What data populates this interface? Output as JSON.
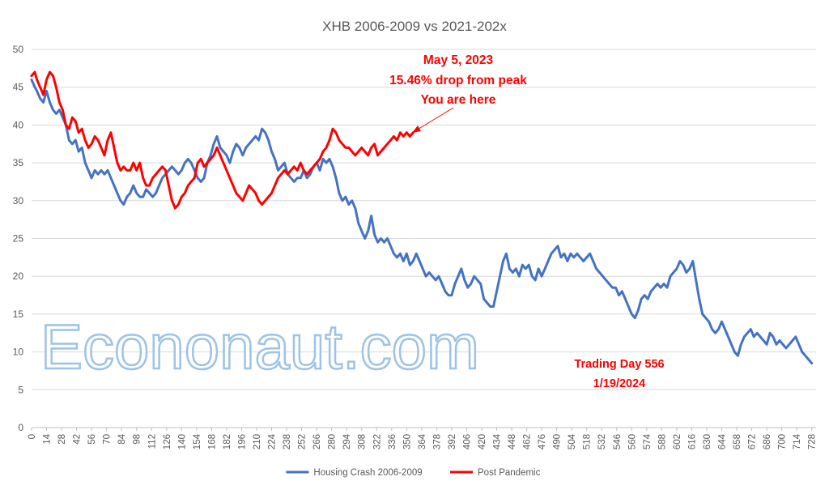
{
  "chart_data": {
    "type": "line",
    "title": "XHB 2006-2009 vs 2021-202x",
    "xlabel": "",
    "ylabel": "",
    "xlim": [
      0,
      732
    ],
    "ylim": [
      0,
      50
    ],
    "y_ticks": [
      0,
      5,
      10,
      15,
      20,
      25,
      30,
      35,
      40,
      45,
      50
    ],
    "x_tick_step": 14,
    "x_tick_max": 728,
    "grid": true,
    "legend_position": "bottom",
    "series": [
      {
        "name": "Housing Crash 2006-2009",
        "color": "#4472c4",
        "x": [
          0,
          3,
          5,
          8,
          11,
          14,
          17,
          20,
          23,
          26,
          29,
          32,
          35,
          38,
          41,
          44,
          47,
          50,
          53,
          56,
          59,
          62,
          65,
          68,
          71,
          74,
          77,
          80,
          83,
          86,
          89,
          92,
          95,
          98,
          101,
          104,
          107,
          110,
          113,
          116,
          119,
          122,
          125,
          128,
          131,
          134,
          137,
          140,
          143,
          146,
          149,
          152,
          155,
          158,
          161,
          164,
          167,
          170,
          173,
          176,
          179,
          182,
          185,
          188,
          191,
          194,
          197,
          200,
          203,
          206,
          209,
          212,
          215,
          218,
          221,
          224,
          227,
          230,
          233,
          236,
          239,
          242,
          245,
          248,
          251,
          254,
          257,
          260,
          263,
          266,
          269,
          272,
          275,
          278,
          281,
          284,
          287,
          290,
          293,
          296,
          299,
          302,
          305,
          308,
          311,
          314,
          317,
          320,
          323,
          326,
          329,
          332,
          335,
          338,
          341,
          344,
          347,
          350,
          353,
          356,
          359,
          362,
          365,
          368,
          371,
          374,
          377,
          380,
          383,
          386,
          389,
          392,
          395,
          398,
          401,
          404,
          407,
          410,
          413,
          416,
          419,
          422,
          425,
          428,
          431,
          434,
          437,
          440,
          443,
          446,
          449,
          452,
          455,
          458,
          461,
          464,
          467,
          470,
          473,
          476,
          479,
          482,
          485,
          488,
          491,
          494,
          497,
          500,
          503,
          506,
          509,
          512,
          515,
          518,
          521,
          524,
          527,
          530,
          533,
          536,
          539,
          542,
          545,
          548,
          551,
          554,
          557,
          560,
          563,
          566,
          569,
          572,
          575,
          578,
          581,
          584,
          587,
          590,
          593,
          596,
          599,
          602,
          605,
          608,
          611,
          614,
          617,
          620,
          623,
          626,
          629,
          632,
          635,
          638,
          641,
          644,
          647,
          650,
          653,
          656,
          659,
          662,
          665,
          668,
          671,
          674,
          677,
          680,
          683,
          686,
          689,
          692,
          695,
          698,
          701,
          704,
          707,
          710,
          713,
          716,
          719,
          722,
          725,
          728
        ],
        "values": [
          46,
          45,
          44.5,
          43.5,
          43,
          44.5,
          43,
          42,
          41.5,
          42,
          41,
          40,
          38,
          37.5,
          38,
          36.5,
          37,
          35,
          34,
          33,
          34,
          33.5,
          34,
          33.5,
          34,
          33,
          32,
          31,
          30,
          29.5,
          30.5,
          31,
          32,
          31,
          30.5,
          30.5,
          31.5,
          31,
          30.5,
          31,
          32,
          33,
          33.5,
          34,
          34.5,
          34,
          33.5,
          34,
          35,
          35.5,
          35,
          34,
          33,
          32.5,
          33,
          35,
          36,
          37.5,
          38.5,
          37,
          36.5,
          36,
          35,
          36.5,
          37.5,
          37,
          36,
          37,
          37.5,
          38,
          38.5,
          38,
          39.5,
          39,
          38,
          36.5,
          35.5,
          34,
          34.5,
          35,
          33.5,
          33,
          32.5,
          33,
          33,
          34,
          33,
          33.5,
          34.5,
          35,
          34,
          35.5,
          35,
          35.5,
          34.5,
          33,
          31,
          30,
          30.5,
          29.5,
          30,
          29,
          27,
          26,
          25,
          26,
          28,
          25.5,
          24.5,
          25,
          24.5,
          25,
          24,
          23,
          22.5,
          23,
          22,
          23,
          21.5,
          22,
          23,
          22,
          21,
          20,
          20.5,
          20,
          19.5,
          20,
          19,
          18,
          17.5,
          17.5,
          19,
          20,
          21,
          19.5,
          18.5,
          19,
          20,
          19.5,
          19,
          17,
          16.5,
          16,
          16,
          18,
          20,
          22,
          23,
          21,
          20.5,
          21,
          20,
          21.5,
          21,
          21.5,
          20,
          19.5,
          21,
          20,
          21,
          22,
          23,
          23.5,
          24,
          22.5,
          23,
          22,
          23,
          22.5,
          23,
          22.5,
          22,
          22.5,
          23,
          22,
          21,
          20.5,
          20,
          19.5,
          19,
          18.5,
          18.5,
          17.5,
          18,
          17,
          16,
          15,
          14.5,
          15.5,
          17,
          17.5,
          17,
          18,
          18.5,
          19,
          18.5,
          19,
          18.5,
          20,
          20.5,
          21,
          22,
          21.5,
          20.5,
          21,
          22,
          19.5,
          17,
          15,
          14.5,
          14,
          13,
          12.5,
          13,
          14,
          13,
          12,
          11,
          10,
          9.5,
          11,
          12,
          12.5,
          13,
          12,
          12.5,
          12,
          11.5,
          11,
          12.5,
          12,
          11,
          11.5,
          11,
          10.5,
          11,
          11.5,
          12,
          11,
          10,
          9.5,
          9,
          8.5
        ]
      },
      {
        "name": "Post Pandemic",
        "color": "#ff0000",
        "x": [
          0,
          3,
          5,
          8,
          11,
          14,
          17,
          20,
          23,
          26,
          29,
          32,
          35,
          38,
          41,
          44,
          47,
          50,
          53,
          56,
          59,
          62,
          65,
          68,
          71,
          74,
          77,
          80,
          83,
          86,
          89,
          92,
          95,
          98,
          101,
          104,
          107,
          110,
          113,
          116,
          119,
          122,
          125,
          128,
          131,
          134,
          137,
          140,
          143,
          146,
          149,
          152,
          155,
          158,
          161,
          164,
          167,
          170,
          173,
          176,
          179,
          182,
          185,
          188,
          191,
          194,
          197,
          200,
          203,
          206,
          209,
          212,
          215,
          218,
          221,
          224,
          227,
          230,
          233,
          236,
          239,
          242,
          245,
          248,
          251,
          254,
          257,
          260,
          263,
          266,
          269,
          272,
          275,
          278,
          281,
          284,
          287,
          290,
          293,
          296,
          299,
          302,
          305,
          308,
          311,
          314,
          317,
          320,
          323,
          326,
          329,
          332,
          335,
          338,
          341,
          344,
          347,
          350,
          353,
          356
        ],
        "values": [
          46.5,
          47,
          46,
          45,
          44,
          46,
          47,
          46.5,
          45,
          43,
          42,
          40,
          39.5,
          41,
          40.5,
          39,
          39.5,
          38,
          37,
          37.5,
          38.5,
          38,
          37,
          36,
          38,
          39,
          37,
          35,
          34,
          34.5,
          34,
          34,
          35,
          34,
          35,
          33,
          32,
          32,
          33,
          33.5,
          34,
          34.5,
          34,
          32,
          30,
          29,
          29.5,
          30.5,
          31,
          32,
          32.5,
          33,
          35,
          35.5,
          34.5,
          35,
          35.5,
          36,
          37,
          36,
          35,
          34,
          33,
          32,
          31,
          30.5,
          30,
          31,
          32,
          31.5,
          31,
          30,
          29.5,
          30,
          30.5,
          31,
          32,
          33,
          33.5,
          34,
          33.5,
          34,
          34.5,
          34,
          35,
          34,
          33.5,
          34,
          34.5,
          35,
          35.5,
          36.5,
          37,
          38,
          39.5,
          39,
          38,
          37.5,
          37,
          37,
          36.5,
          36,
          36.5,
          37,
          36.5,
          36,
          37,
          37.5,
          36,
          36.5,
          37,
          37.5,
          38,
          38.5,
          38,
          39,
          38.5,
          39,
          38.5,
          39
        ]
      }
    ],
    "annotations": [
      {
        "lines": [
          "May 5, 2023",
          "15.46% drop from peak",
          "You are here"
        ],
        "color": "#ff0000"
      },
      {
        "lines": [
          "Trading Day 556",
          "1/19/2024"
        ],
        "color": "#ff0000"
      }
    ],
    "watermark": "Econonaut.com"
  }
}
